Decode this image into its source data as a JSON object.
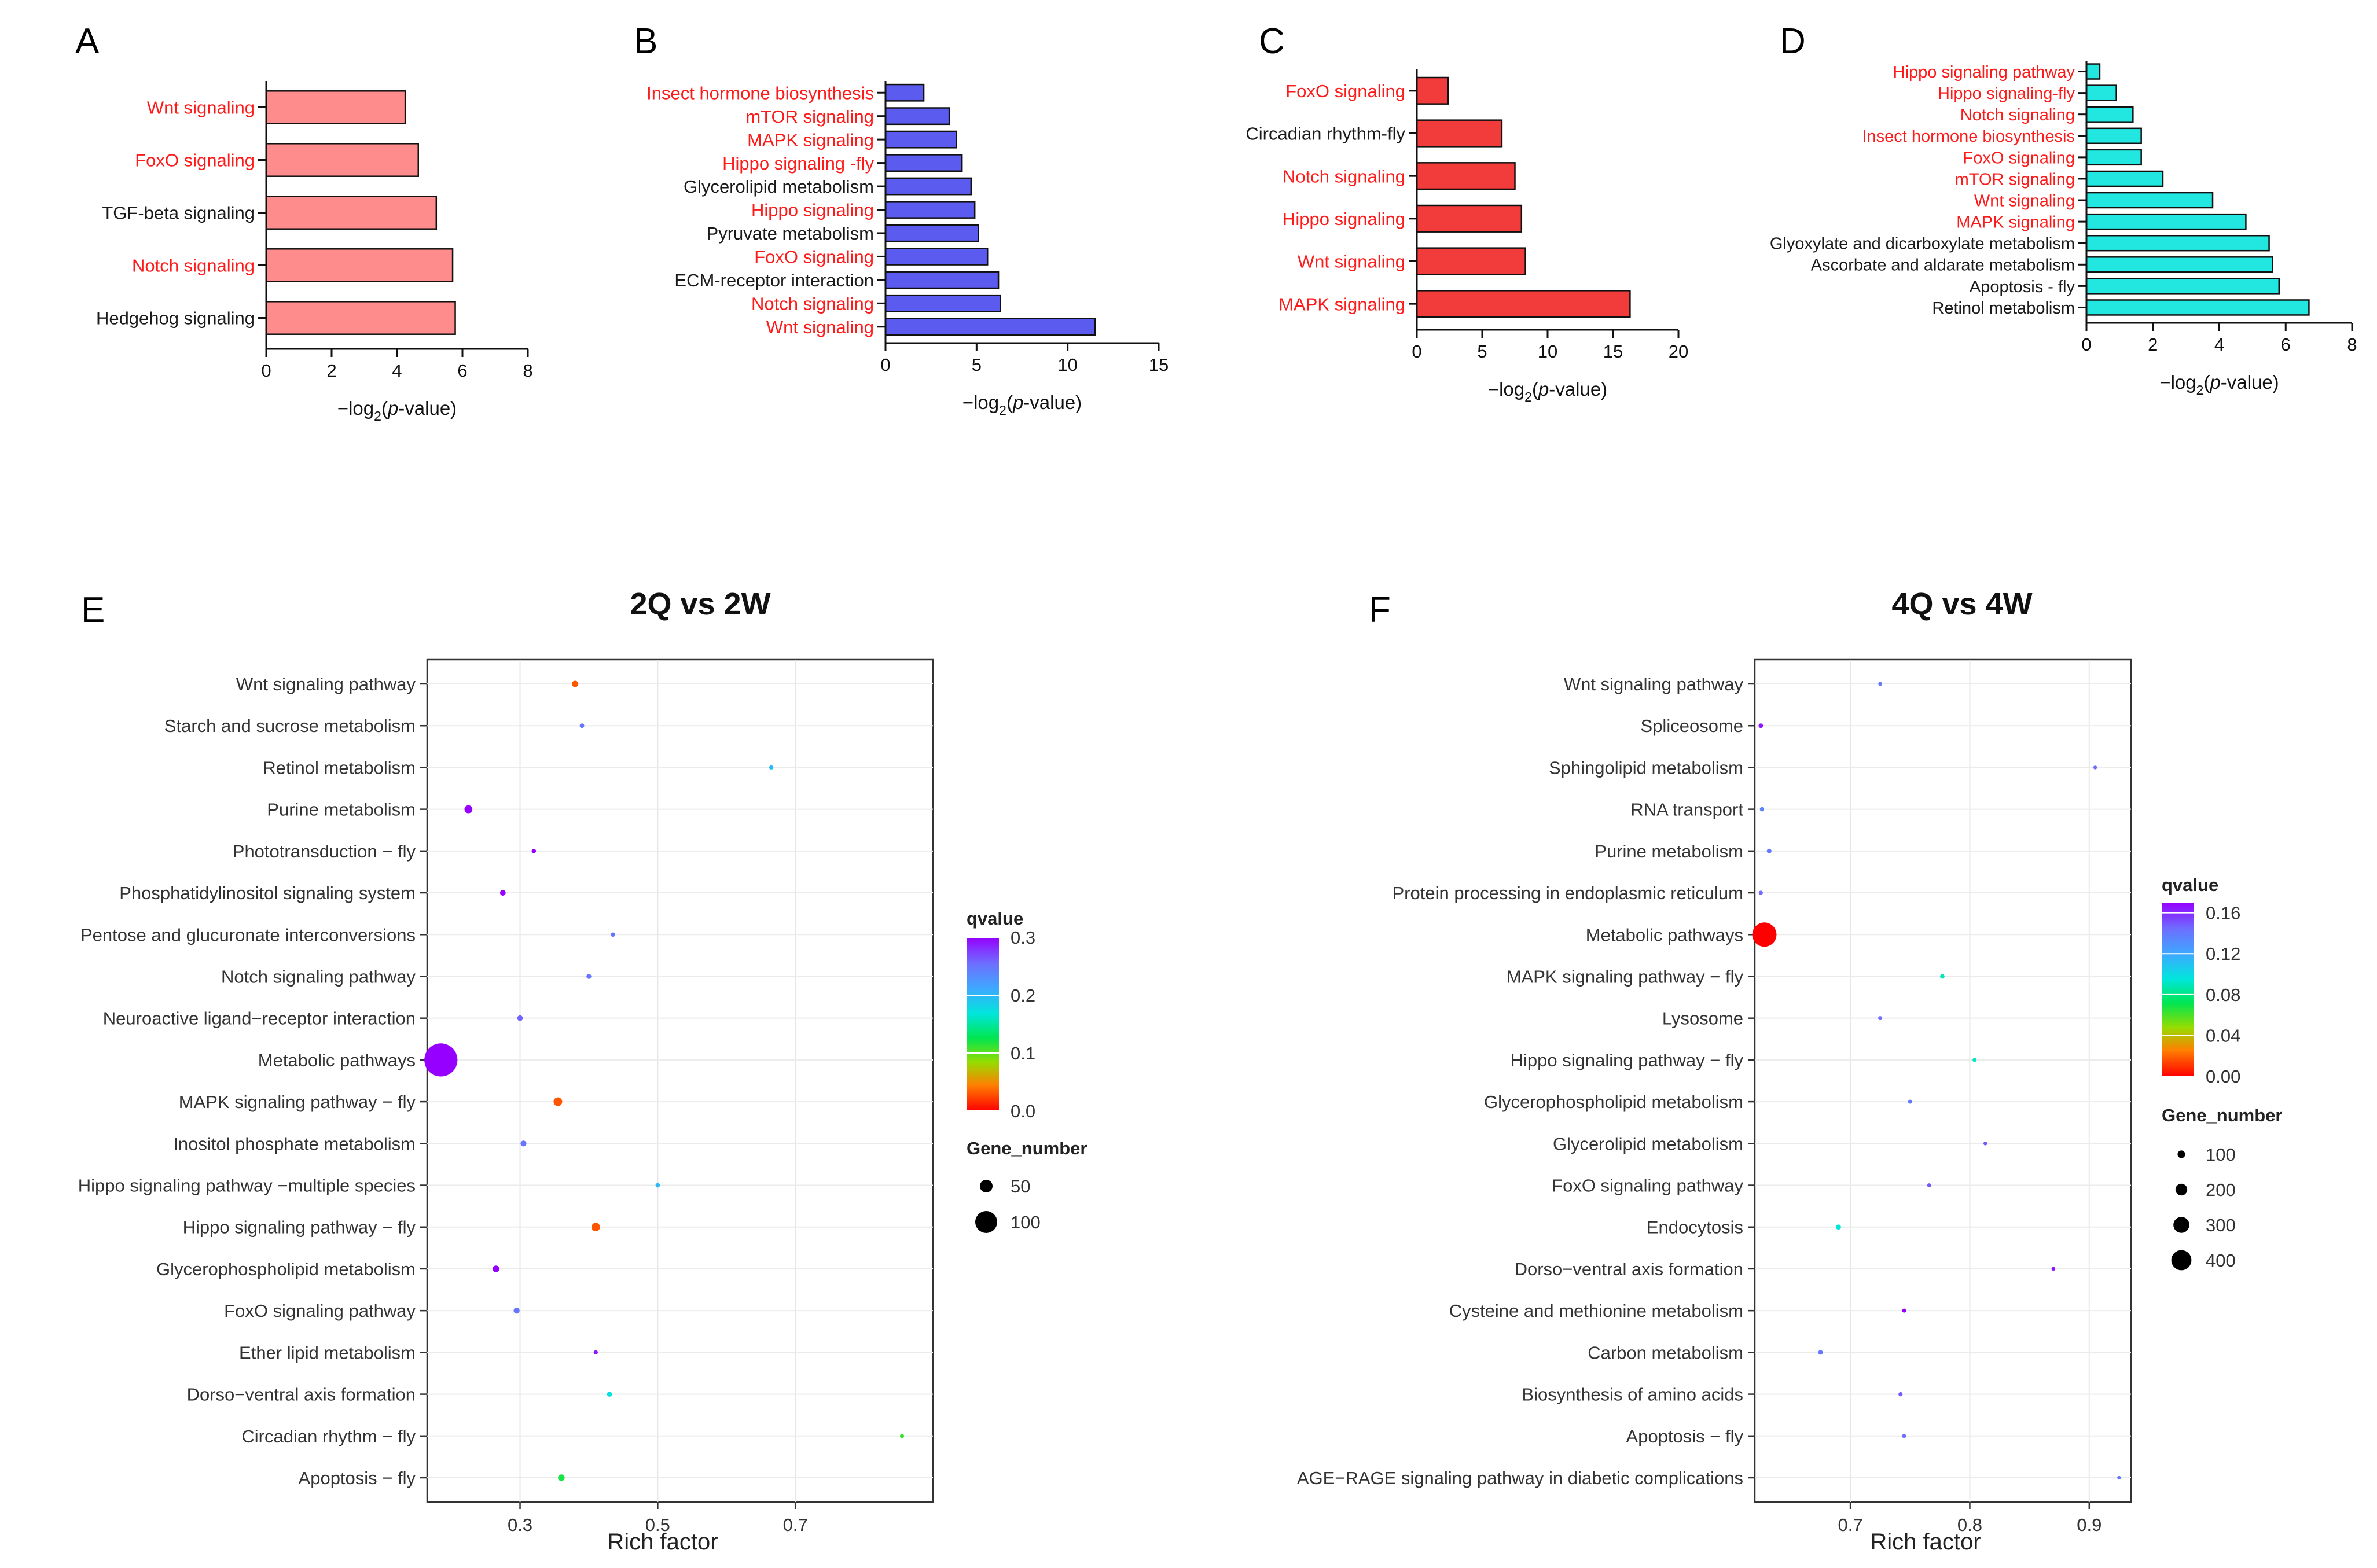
{
  "figure": {
    "panel_letters": [
      "A",
      "B",
      "C",
      "D",
      "E",
      "F"
    ]
  },
  "colors": {
    "red_label": "#ff1a1a",
    "black_label": "#1a1a1a",
    "panel_a_fill": "#ff8c8c",
    "panel_b_fill": "#5b5bef",
    "panel_c_fill": "#f23b3b",
    "panel_d_fill": "#22e6e0"
  },
  "chart_data": [
    {
      "panel": "A",
      "type": "bar",
      "orientation": "horizontal",
      "xlabel_main": "−log",
      "xlabel_sub": "2",
      "xlabel_paren": "(",
      "xlabel_italic": "p",
      "xlabel_end": "-value)",
      "xlim": [
        0,
        8
      ],
      "xticks": [
        "0",
        "2",
        "4",
        "6",
        "8"
      ],
      "categories": [
        "Wnt signaling",
        "FoxO signaling",
        "TGF-beta signaling",
        "Notch signaling",
        "Hedgehog signaling"
      ],
      "values": [
        4.25,
        4.65,
        5.2,
        5.7,
        5.78
      ],
      "highlight": [
        true,
        true,
        false,
        true,
        false
      ]
    },
    {
      "panel": "B",
      "type": "bar",
      "orientation": "horizontal",
      "xlabel_main": "−log",
      "xlabel_sub": "2",
      "xlabel_paren": "(",
      "xlabel_italic": "p",
      "xlabel_end": "-value)",
      "xlim": [
        0,
        15
      ],
      "xticks": [
        "0",
        "5",
        "10",
        "15"
      ],
      "categories": [
        "Insect hormone biosynthesis",
        "mTOR signaling",
        "MAPK signaling",
        "Hippo signaling -fly",
        "Glycerolipid metabolism",
        "Hippo signaling",
        "Pyruvate metabolism",
        "FoxO signaling",
        "ECM-receptor interaction",
        "Notch signaling",
        "Wnt signaling"
      ],
      "values": [
        2.1,
        3.5,
        3.9,
        4.2,
        4.7,
        4.9,
        5.1,
        5.6,
        6.2,
        6.3,
        11.5
      ],
      "highlight": [
        true,
        true,
        true,
        true,
        false,
        true,
        false,
        true,
        false,
        true,
        true
      ]
    },
    {
      "panel": "C",
      "type": "bar",
      "orientation": "horizontal",
      "xlabel_main": "−log",
      "xlabel_sub": "2",
      "xlabel_paren": "(",
      "xlabel_italic": "p",
      "xlabel_end": "-value)",
      "xlim": [
        0,
        20
      ],
      "xticks": [
        "0",
        "5",
        "10",
        "15",
        "20"
      ],
      "categories": [
        "FoxO signaling",
        "Circadian rhythm-fly",
        "Notch signaling",
        "Hippo signaling",
        "Wnt signaling",
        "MAPK signaling"
      ],
      "values": [
        2.4,
        6.5,
        7.5,
        8.0,
        8.3,
        16.3
      ],
      "highlight": [
        true,
        false,
        true,
        true,
        true,
        true
      ]
    },
    {
      "panel": "D",
      "type": "bar",
      "orientation": "horizontal",
      "xlabel_main": "−log",
      "xlabel_sub": "2",
      "xlabel_paren": "(",
      "xlabel_italic": "p",
      "xlabel_end": "-value)",
      "xlim": [
        0,
        8
      ],
      "xticks": [
        "0",
        "2",
        "4",
        "6",
        "8"
      ],
      "categories": [
        "Hippo signaling pathway",
        "Hippo signaling-fly",
        "Notch signaling",
        "Insect hormone biosynthesis",
        "FoxO signaling",
        "mTOR signaling",
        "Wnt signaling",
        "MAPK signaling",
        "Glyoxylate and dicarboxylate metabolism",
        "Ascorbate and aldarate metabolism",
        "Apoptosis - fly",
        "Retinol metabolism"
      ],
      "values": [
        0.4,
        0.9,
        1.4,
        1.65,
        1.65,
        2.3,
        3.8,
        4.8,
        5.5,
        5.6,
        5.8,
        6.7
      ],
      "highlight": [
        true,
        true,
        true,
        true,
        true,
        true,
        true,
        true,
        false,
        false,
        false,
        false
      ]
    },
    {
      "panel": "E",
      "type": "scatter",
      "title": "2Q vs 2W",
      "xlabel": "Rich factor",
      "xlim": [
        0.165,
        0.9
      ],
      "xticks": [
        0.3,
        0.5,
        0.7
      ],
      "xtick_labels": [
        "0.3",
        "0.5",
        "0.7"
      ],
      "color_legend_title": "qvalue",
      "color_range": [
        0.0,
        0.3
      ],
      "color_ticks": [
        "0.3",
        "0.2",
        "0.1",
        "0.0"
      ],
      "color_tick_values": [
        0.3,
        0.2,
        0.1,
        0.0
      ],
      "size_legend_title": "Gene_number",
      "size_legend_values": [
        50,
        100
      ],
      "size_legend_labels": [
        "50",
        "100"
      ],
      "categories": [
        "Wnt signaling pathway",
        "Starch and sucrose metabolism",
        "Retinol metabolism",
        "Purine metabolism",
        "Phototransduction − fly",
        "Phosphatidylinositol signaling system",
        "Pentose and glucuronate interconversions",
        "Notch signaling pathway",
        "Neuroactive ligand−receptor interaction",
        "Metabolic pathways",
        "MAPK signaling pathway − fly",
        "Inositol phosphate metabolism",
        "Hippo signaling pathway −multiple species",
        "Hippo signaling pathway − fly",
        "Glycerophospholipid metabolism",
        "FoxO signaling pathway",
        "Ether lipid metabolism",
        "Dorso−ventral axis formation",
        "Circadian rhythm − fly",
        "Apoptosis − fly"
      ],
      "x": [
        0.38,
        0.39,
        0.665,
        0.225,
        0.32,
        0.275,
        0.435,
        0.4,
        0.3,
        0.185,
        0.355,
        0.305,
        0.5,
        0.41,
        0.265,
        0.295,
        0.41,
        0.43,
        0.855,
        0.36
      ],
      "q": [
        0.03,
        0.25,
        0.2,
        0.34,
        0.33,
        0.34,
        0.25,
        0.25,
        0.26,
        0.35,
        0.03,
        0.25,
        0.2,
        0.03,
        0.34,
        0.25,
        0.29,
        0.17,
        0.11,
        0.12
      ],
      "gene_number": [
        16,
        6,
        4,
        24,
        5,
        12,
        5,
        8,
        12,
        160,
        28,
        13,
        5,
        27,
        17,
        14,
        4,
        8,
        4,
        17
      ]
    },
    {
      "panel": "F",
      "type": "scatter",
      "title": "4Q vs 4W",
      "xlabel": "Rich factor",
      "xlim": [
        0.62,
        0.935
      ],
      "xticks": [
        0.7,
        0.8,
        0.9
      ],
      "xtick_labels": [
        "0.7",
        "0.8",
        "0.9"
      ],
      "color_legend_title": "qvalue",
      "color_range": [
        0.0,
        0.17
      ],
      "color_ticks": [
        "0.16",
        "0.12",
        "0.08",
        "0.04",
        "0.00"
      ],
      "color_tick_values": [
        0.16,
        0.12,
        0.08,
        0.04,
        0.0
      ],
      "size_legend_title": "Gene_number",
      "size_legend_values": [
        100,
        200,
        300,
        400
      ],
      "size_legend_labels": [
        "100",
        "200",
        "300",
        "400"
      ],
      "categories": [
        "Wnt signaling pathway",
        "Spliceosome",
        "Sphingolipid metabolism",
        "RNA transport",
        "Purine metabolism",
        "Protein processing in endoplasmic reticulum",
        "Metabolic pathways",
        "MAPK signaling pathway − fly",
        "Lysosome",
        "Hippo signaling pathway − fly",
        "Glycerophospholipid metabolism",
        "Glycerolipid metabolism",
        "FoxO signaling pathway",
        "Endocytosis",
        "Dorso−ventral axis formation",
        "Cysteine and methionine metabolism",
        "Carbon metabolism",
        "Biosynthesis of amino acids",
        "Apoptosis − fly",
        "AGE−RAGE signaling pathway in diabetic complications"
      ],
      "x": [
        0.725,
        0.625,
        0.905,
        0.626,
        0.632,
        0.625,
        0.628,
        0.777,
        0.725,
        0.804,
        0.75,
        0.813,
        0.766,
        0.69,
        0.87,
        0.745,
        0.675,
        0.742,
        0.745,
        0.925
      ],
      "q": [
        0.14,
        0.165,
        0.145,
        0.135,
        0.14,
        0.145,
        0.0,
        0.09,
        0.145,
        0.09,
        0.14,
        0.15,
        0.15,
        0.095,
        0.165,
        0.17,
        0.14,
        0.15,
        0.145,
        0.14
      ],
      "gene_number": [
        12,
        25,
        6,
        20,
        30,
        18,
        500,
        25,
        15,
        15,
        12,
        8,
        12,
        40,
        8,
        14,
        28,
        18,
        14,
        6
      ]
    }
  ]
}
